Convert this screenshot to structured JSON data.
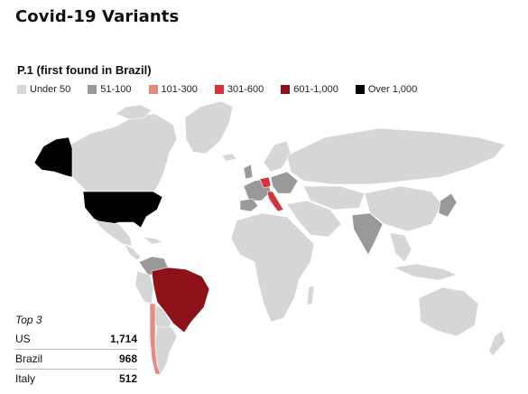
{
  "title": "Covid-19 Variants",
  "subtitle": "P.1 (first found in Brazil)",
  "legend": [
    {
      "label": "Under 50",
      "color": "#d6d6d6"
    },
    {
      "label": "51-100",
      "color": "#999999"
    },
    {
      "label": "101-300",
      "color": "#e58a7e"
    },
    {
      "label": "301-600",
      "color": "#d6323c"
    },
    {
      "label": "601-1,000",
      "color": "#8c1118"
    },
    {
      "label": "Over 1,000",
      "color": "#000000"
    }
  ],
  "map_colors": {
    "under50": "#d6d6d6",
    "c51_100": "#999999",
    "c101_300": "#e58a7e",
    "c301_600": "#d6323c",
    "c601_1000": "#8c1118",
    "over1000": "#000000"
  },
  "top3": {
    "title": "Top 3",
    "rows": [
      {
        "country": "US",
        "value": "1,714"
      },
      {
        "country": "Brazil",
        "value": "968"
      },
      {
        "country": "Italy",
        "value": "512"
      }
    ]
  }
}
